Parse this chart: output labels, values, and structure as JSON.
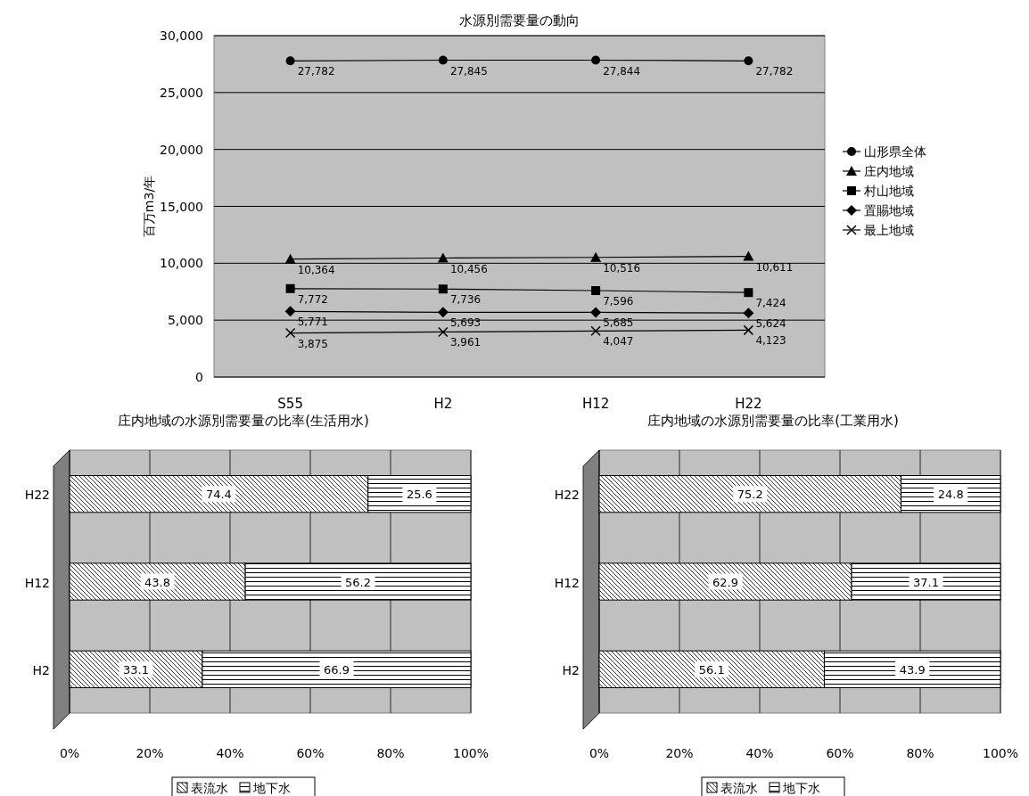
{
  "chart_data": [
    {
      "type": "line",
      "title": "水源別需要量の動向",
      "ylabel": "百万m3/年",
      "categories": [
        "S55",
        "H2",
        "H12",
        "H22"
      ],
      "series": [
        {
          "name": "山形県全体",
          "color": "#000000",
          "marker": "circle",
          "values": [
            27782,
            27845,
            27844,
            27782
          ],
          "value_labels": [
            "27,782",
            "27,845",
            "27,844",
            "27,782"
          ]
        },
        {
          "name": "庄内地域",
          "color": "#000000",
          "marker": "triangle",
          "values": [
            10364,
            10456,
            10516,
            10611
          ],
          "value_labels": [
            "10,364",
            "10,456",
            "10,516",
            "10,611"
          ]
        },
        {
          "name": "村山地域",
          "color": "#000000",
          "marker": "square",
          "values": [
            7772,
            7736,
            7596,
            7424
          ],
          "value_labels": [
            "7,772",
            "7,736",
            "7,596",
            "7,424"
          ]
        },
        {
          "name": "置賜地域",
          "color": "#000000",
          "marker": "diamond",
          "values": [
            5771,
            5693,
            5685,
            5624
          ],
          "value_labels": [
            "5,771",
            "5,693",
            "5,685",
            "5,624"
          ]
        },
        {
          "name": "最上地域",
          "color": "#000000",
          "marker": "cross",
          "values": [
            3875,
            3961,
            4047,
            4123
          ],
          "value_labels": [
            "3,875",
            "3,961",
            "4,047",
            "4,123"
          ]
        }
      ],
      "ylim": [
        0,
        30000
      ],
      "yticks": [
        0,
        {
          "value": 5000,
          "label": "5,000"
        },
        {
          "value": 10000,
          "label": "10,000"
        },
        {
          "value": 15000,
          "label": "15,000"
        },
        {
          "value": 20000,
          "label": "20,000"
        },
        {
          "value": 25000,
          "label": "25,000"
        },
        {
          "value": 30000,
          "label": "30,000"
        }
      ],
      "grid": "y",
      "legend": "right"
    },
    {
      "type": "bar",
      "orientation": "horizontal",
      "stacked": true,
      "title": "庄内地域の水源別需要量の比率(生活用水)",
      "categories": [
        "H22",
        "H12",
        "H2"
      ],
      "series": [
        {
          "name": "表流水",
          "color": "#000000",
          "values": [
            74.4,
            43.8,
            33.1
          ]
        },
        {
          "name": "地下水",
          "color": "#000000",
          "values": [
            25.6,
            56.2,
            66.9
          ]
        }
      ],
      "xlim": [
        0,
        100
      ],
      "xticks": [
        {
          "value": 0,
          "label": "0%"
        },
        {
          "value": 20,
          "label": "20%"
        },
        {
          "value": 40,
          "label": "40%"
        },
        {
          "value": 60,
          "label": "60%"
        },
        {
          "value": 80,
          "label": "80%"
        },
        {
          "value": 100,
          "label": "100%"
        }
      ],
      "grid": "x",
      "data_labels": true,
      "legend": "bottom"
    },
    {
      "type": "bar",
      "orientation": "horizontal",
      "stacked": true,
      "title": "庄内地域の水源別需要量の比率(工業用水)",
      "categories": [
        "H22",
        "H12",
        "H2"
      ],
      "series": [
        {
          "name": "表流水",
          "color": "#000000",
          "values": [
            75.2,
            62.9,
            56.1
          ]
        },
        {
          "name": "地下水",
          "color": "#000000",
          "values": [
            24.8,
            37.1,
            43.9
          ]
        }
      ],
      "xlim": [
        0,
        100
      ],
      "xticks": [
        {
          "value": 0,
          "label": "0%"
        },
        {
          "value": 20,
          "label": "20%"
        },
        {
          "value": 40,
          "label": "40%"
        },
        {
          "value": 60,
          "label": "60%"
        },
        {
          "value": 80,
          "label": "80%"
        },
        {
          "value": 100,
          "label": "100%"
        }
      ],
      "grid": "x",
      "data_labels": true,
      "legend": "bottom"
    }
  ]
}
